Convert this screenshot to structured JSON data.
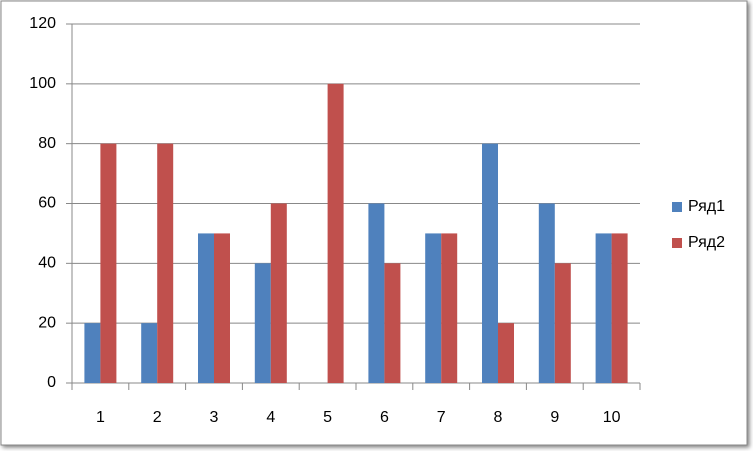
{
  "chart_data": {
    "type": "bar",
    "categories": [
      "1",
      "2",
      "3",
      "4",
      "5",
      "6",
      "7",
      "8",
      "9",
      "10"
    ],
    "series": [
      {
        "name": "Ряд1",
        "color": "#4f81bd",
        "values": [
          20,
          20,
          50,
          40,
          0,
          60,
          50,
          80,
          60,
          50
        ]
      },
      {
        "name": "Ряд2",
        "color": "#c0504d",
        "values": [
          80,
          80,
          50,
          60,
          100,
          40,
          50,
          20,
          40,
          50
        ]
      }
    ],
    "ylim": [
      0,
      120
    ],
    "yticks": [
      0,
      20,
      40,
      60,
      80,
      100,
      120
    ],
    "grid": true,
    "legend": "right"
  }
}
